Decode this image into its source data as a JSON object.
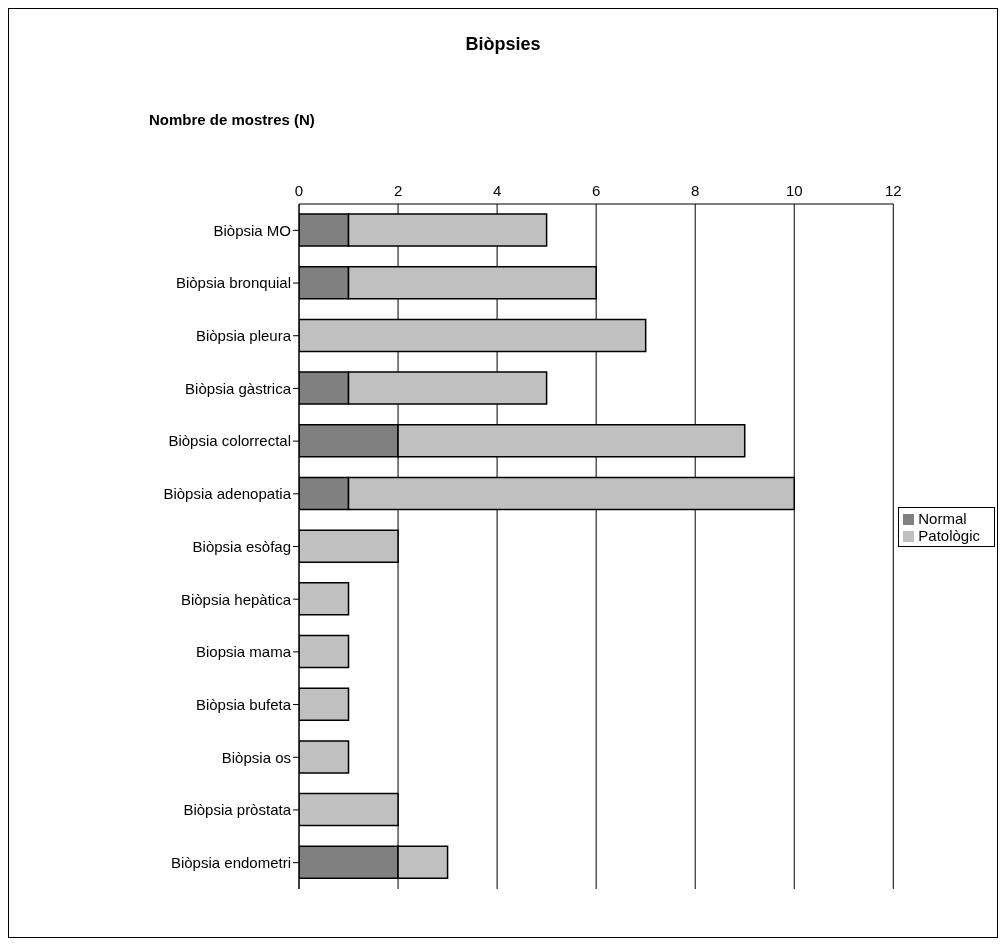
{
  "chart_data": {
    "type": "bar",
    "title": "Biòpsies",
    "xlabel": "Nombre de mostres (N)",
    "orientation": "horizontal",
    "stacked": true,
    "categories": [
      "Biòpsia MO",
      "Biòpsia bronquial",
      "Biòpsia pleura",
      "Biòpsia gàstrica",
      "Biòpsia colorrectal",
      "Biòpsia adenopatia",
      "Biòpsia esòfag",
      "Biòpsia hepàtica",
      "Biopsia mama",
      "Biòpsia bufeta",
      "Biòpsia os",
      "Biòpsia pròstata",
      "Biòpsia endometri"
    ],
    "series": [
      {
        "name": "Normal",
        "color": "#808080",
        "values": [
          1,
          1,
          0,
          1,
          2,
          1,
          0,
          0,
          0,
          0,
          0,
          0,
          2
        ]
      },
      {
        "name": "Patològic",
        "color": "#c0c0c0",
        "values": [
          4,
          5,
          7,
          4,
          7,
          9,
          2,
          1,
          1,
          1,
          1,
          2,
          1
        ]
      }
    ],
    "xlim": [
      0,
      12
    ],
    "xticks": [
      0,
      2,
      4,
      6,
      8,
      10,
      12
    ],
    "grid": "x",
    "legend": "right"
  }
}
